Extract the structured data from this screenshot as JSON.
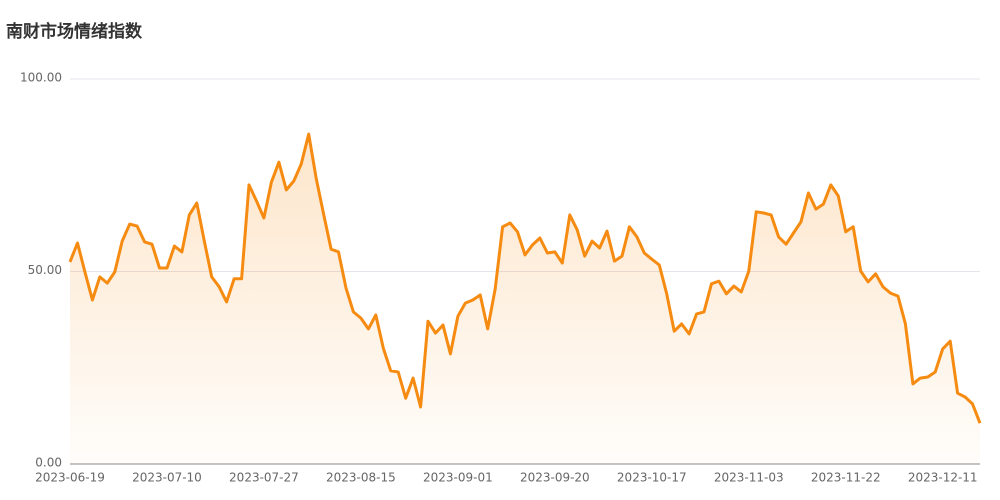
{
  "chart_data": {
    "type": "line",
    "title": "南财市场情绪指数",
    "categories": [
      "2023-06-19",
      null,
      null,
      null,
      null,
      null,
      null,
      null,
      null,
      null,
      null,
      null,
      null,
      "2023-07-10",
      null,
      null,
      null,
      null,
      null,
      null,
      null,
      null,
      null,
      null,
      null,
      null,
      "2023-07-27",
      null,
      null,
      null,
      null,
      null,
      null,
      null,
      null,
      null,
      null,
      null,
      null,
      "2023-08-15",
      null,
      null,
      null,
      null,
      null,
      null,
      null,
      null,
      null,
      null,
      null,
      null,
      "2023-09-01",
      null,
      null,
      null,
      null,
      null,
      null,
      null,
      null,
      null,
      null,
      null,
      null,
      "2023-09-20",
      null,
      null,
      null,
      null,
      null,
      null,
      null,
      null,
      null,
      null,
      null,
      null,
      "2023-10-17",
      null,
      null,
      null,
      null,
      null,
      null,
      null,
      null,
      null,
      null,
      null,
      null,
      "2023-11-03",
      null,
      null,
      null,
      null,
      null,
      null,
      null,
      null,
      null,
      null,
      null,
      null,
      "2023-11-22",
      null,
      null,
      null,
      null,
      null,
      null,
      null,
      null,
      null,
      null,
      null,
      null,
      "2023-12-11",
      null,
      null,
      null,
      null,
      null
    ],
    "series": [
      {
        "color": "#f68b12",
        "values": [
          52.5,
          57.4,
          49.9,
          42.6,
          48.6,
          47.0,
          49.9,
          57.9,
          62.3,
          61.8,
          57.7,
          57.1,
          50.9,
          50.9,
          56.6,
          55.1,
          64.7,
          67.8,
          57.9,
          48.6,
          46.0,
          42.1,
          48.1,
          48.1,
          72.5,
          68.3,
          63.9,
          73.2,
          78.4,
          71.2,
          73.5,
          77.9,
          85.7,
          74.3,
          64.9,
          55.8,
          55.1,
          45.7,
          39.5,
          37.9,
          35.1,
          38.7,
          30.1,
          24.2,
          23.9,
          17.1,
          22.3,
          14.8,
          37.1,
          34.0,
          36.1,
          28.6,
          38.4,
          41.8,
          42.6,
          43.9,
          35.1,
          45.5,
          61.6,
          62.6,
          60.3,
          54.3,
          56.9,
          58.7,
          54.8,
          55.1,
          52.2,
          64.7,
          60.8,
          54.0,
          57.9,
          56.1,
          60.5,
          52.7,
          54.0,
          61.6,
          59.0,
          54.8,
          53.2,
          51.7,
          44.2,
          34.5,
          36.4,
          33.8,
          39.0,
          39.5,
          46.8,
          47.5,
          44.2,
          46.2,
          44.7,
          50.1,
          65.5,
          65.2,
          64.7,
          59.0,
          57.1,
          60.0,
          62.9,
          70.4,
          66.2,
          67.5,
          72.5,
          69.6,
          60.3,
          61.6,
          50.1,
          47.3,
          49.4,
          46.0,
          44.4,
          43.6,
          36.4,
          20.8,
          22.3,
          22.6,
          23.9,
          29.9,
          31.9,
          18.4,
          17.4,
          15.6,
          10.6
        ]
      }
    ],
    "ylim": [
      0,
      100
    ],
    "yticks": [
      {
        "value": 0,
        "label": "0.00"
      },
      {
        "value": 50,
        "label": "50.00"
      },
      {
        "value": 100,
        "label": "100.00"
      }
    ],
    "grid": true
  }
}
